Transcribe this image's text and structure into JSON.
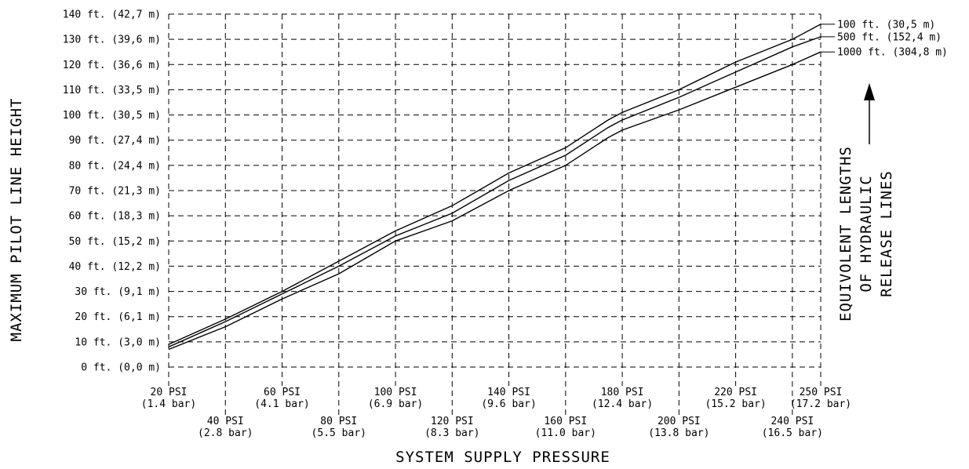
{
  "chart_data": {
    "type": "line",
    "xlabel": "SYSTEM SUPPLY PRESSURE",
    "ylabel": "MAXIMUM PILOT LINE HEIGHT",
    "xlim": [
      20,
      250
    ],
    "ylim": [
      0,
      140
    ],
    "grid": true,
    "legend_title_lines": [
      "EQUIVOLENT LENGTHS",
      "OF HYDRAULIC",
      "RELEASE LINES"
    ],
    "legend_placement": "right",
    "y_ticks": [
      {
        "value": 0,
        "label": "0 ft. (0,0 m)"
      },
      {
        "value": 10,
        "label": "10 ft. (3,0 m)"
      },
      {
        "value": 20,
        "label": "20 ft. (6,1 m)"
      },
      {
        "value": 30,
        "label": "30 ft. (9,1 m)"
      },
      {
        "value": 40,
        "label": "40 ft. (12,2 m)"
      },
      {
        "value": 50,
        "label": "50 ft. (15,2 m)"
      },
      {
        "value": 60,
        "label": "60 ft. (18,3 m)"
      },
      {
        "value": 70,
        "label": "70 ft. (21,3 m)"
      },
      {
        "value": 80,
        "label": "80 ft. (24,4 m)"
      },
      {
        "value": 90,
        "label": "90 ft. (27,4 m)"
      },
      {
        "value": 100,
        "label": "100 ft. (30,5 m)"
      },
      {
        "value": 110,
        "label": "110 ft. (33,5 m)"
      },
      {
        "value": 120,
        "label": "120 ft. (36,6 m)"
      },
      {
        "value": 130,
        "label": "130 ft. (39,6 m)"
      },
      {
        "value": 140,
        "label": "140 ft. (42,7 m)"
      }
    ],
    "x_ticks": [
      {
        "value": 20,
        "psi": "20 PSI",
        "bar": "(1.4 bar)",
        "row": 1
      },
      {
        "value": 40,
        "psi": "40 PSI",
        "bar": "(2.8 bar)",
        "row": 2
      },
      {
        "value": 60,
        "psi": "60 PSI",
        "bar": "(4.1 bar)",
        "row": 1
      },
      {
        "value": 80,
        "psi": "80 PSI",
        "bar": "(5.5 bar)",
        "row": 2
      },
      {
        "value": 100,
        "psi": "100 PSI",
        "bar": "(6.9 bar)",
        "row": 1
      },
      {
        "value": 120,
        "psi": "120 PSI",
        "bar": "(8.3 bar)",
        "row": 2
      },
      {
        "value": 140,
        "psi": "140 PSI",
        "bar": "(9.6 bar)",
        "row": 1
      },
      {
        "value": 160,
        "psi": "160 PSI",
        "bar": "(11.0 bar)",
        "row": 2
      },
      {
        "value": 180,
        "psi": "180 PSI",
        "bar": "(12.4 bar)",
        "row": 1
      },
      {
        "value": 200,
        "psi": "200 PSI",
        "bar": "(13.8 bar)",
        "row": 2
      },
      {
        "value": 220,
        "psi": "220 PSI",
        "bar": "(15.2 bar)",
        "row": 1
      },
      {
        "value": 240,
        "psi": "240 PSI",
        "bar": "(16.5 bar)",
        "row": 2
      },
      {
        "value": 250,
        "psi": "250 PSI",
        "bar": "(17.2 bar)",
        "row": 1
      }
    ],
    "series": [
      {
        "name": "100 ft. (30,5 m)",
        "x": [
          20,
          40,
          60,
          80,
          100,
          120,
          140,
          160,
          175,
          180,
          200,
          220,
          240,
          250
        ],
        "y": [
          9,
          19,
          30,
          42,
          54,
          64,
          77,
          87,
          98,
          101,
          110,
          121,
          130,
          136
        ]
      },
      {
        "name": "500 ft. (152,4 m)",
        "x": [
          20,
          40,
          60,
          80,
          100,
          120,
          140,
          160,
          175,
          180,
          200,
          220,
          240,
          250
        ],
        "y": [
          8,
          18,
          29,
          40,
          52,
          61,
          74,
          84,
          95,
          98,
          107,
          117,
          127,
          131
        ]
      },
      {
        "name": "1000 ft. (304,8 m)",
        "x": [
          20,
          40,
          60,
          80,
          100,
          120,
          140,
          160,
          175,
          180,
          200,
          220,
          240,
          250
        ],
        "y": [
          7,
          16,
          27,
          37,
          50,
          58,
          70,
          80,
          91,
          94,
          102,
          111,
          120,
          125
        ]
      }
    ]
  }
}
